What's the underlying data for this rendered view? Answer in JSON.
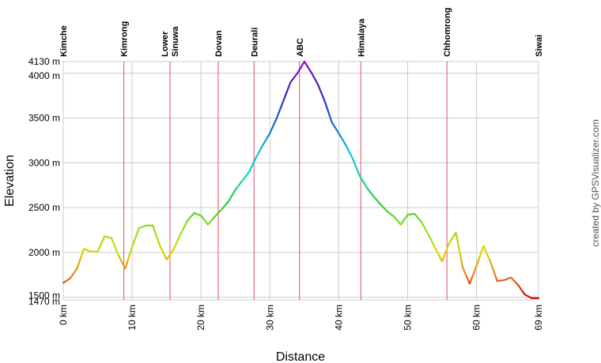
{
  "chart_data": {
    "type": "line",
    "title": "",
    "xlabel": "Distance",
    "ylabel": "Elevation",
    "x_unit": "km",
    "y_unit": "m",
    "xlim": [
      0,
      69
    ],
    "ylim": [
      1470,
      4130
    ],
    "x_ticks": [
      {
        "value": 0,
        "label": "0 km"
      },
      {
        "value": 10,
        "label": "10 km"
      },
      {
        "value": 20,
        "label": "20 km"
      },
      {
        "value": 30,
        "label": "30 km"
      },
      {
        "value": 40,
        "label": "40 km"
      },
      {
        "value": 50,
        "label": "50 km"
      },
      {
        "value": 60,
        "label": "60 km"
      },
      {
        "value": 69,
        "label": "69 km"
      }
    ],
    "y_ticks": [
      {
        "value": 1470,
        "label": "1470 m"
      },
      {
        "value": 1500,
        "label": "1500 m"
      },
      {
        "value": 2000,
        "label": "2000 m"
      },
      {
        "value": 2500,
        "label": "2500 m"
      },
      {
        "value": 3000,
        "label": "3000 m"
      },
      {
        "value": 3500,
        "label": "3500 m"
      },
      {
        "value": 4000,
        "label": "4000 m"
      },
      {
        "value": 4130,
        "label": "4130 m"
      }
    ],
    "waypoints": [
      {
        "name": "Kimche",
        "km": 0,
        "line": false
      },
      {
        "name": "Kimrong",
        "km": 8.8,
        "line": true
      },
      {
        "name": "Lower\nSinuwa",
        "km": 15.5,
        "line": true
      },
      {
        "name": "Dovan",
        "km": 22.5,
        "line": true
      },
      {
        "name": "Deurali",
        "km": 27.7,
        "line": true
      },
      {
        "name": "ABC",
        "km": 34.3,
        "line": true
      },
      {
        "name": "Himalaya",
        "km": 43.2,
        "line": true
      },
      {
        "name": "Chhomrong",
        "km": 55.7,
        "line": true
      },
      {
        "name": "Siwai",
        "km": 69,
        "line": false
      }
    ],
    "series": [
      {
        "name": "Elevation",
        "x": [
          0,
          1,
          2,
          3,
          4,
          5,
          6,
          7,
          8,
          9,
          10,
          11,
          12,
          13,
          14,
          15,
          16,
          17,
          18,
          19,
          20,
          21,
          22,
          23,
          24,
          25,
          26,
          27,
          28,
          29,
          30,
          31,
          32,
          33,
          34,
          35,
          36,
          37,
          38,
          39,
          40,
          41,
          42,
          43,
          44,
          45,
          46,
          47,
          48,
          49,
          50,
          51,
          52,
          53,
          54,
          55,
          56,
          57,
          58,
          59,
          60,
          61,
          62,
          63,
          64,
          65,
          66,
          67,
          68,
          69
        ],
        "values": [
          1660,
          1710,
          1820,
          2040,
          2010,
          2010,
          2180,
          2160,
          1970,
          1820,
          2060,
          2270,
          2300,
          2300,
          2080,
          1920,
          2030,
          2200,
          2350,
          2440,
          2410,
          2310,
          2400,
          2480,
          2570,
          2700,
          2800,
          2900,
          3060,
          3200,
          3330,
          3500,
          3700,
          3900,
          4000,
          4130,
          4010,
          3870,
          3680,
          3450,
          3330,
          3200,
          3050,
          2860,
          2730,
          2630,
          2540,
          2460,
          2400,
          2310,
          2420,
          2430,
          2340,
          2200,
          2050,
          1900,
          2100,
          2220,
          1830,
          1650,
          1850,
          2070,
          1900,
          1680,
          1690,
          1720,
          1640,
          1530,
          1490,
          1490
        ]
      }
    ]
  },
  "credit": "created by GPSVisualizer.com"
}
